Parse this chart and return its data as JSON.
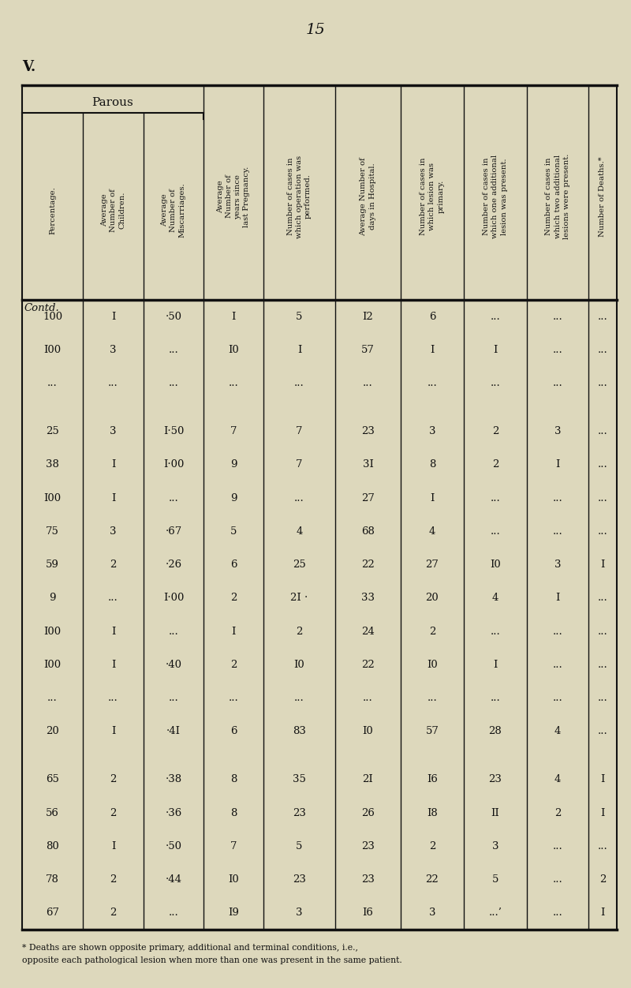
{
  "page_number": "15",
  "section": "V.",
  "parous_label": "Parous",
  "col_headers": [
    "Percentage.",
    "Average\nNumber of\nChildren.",
    "Average\nNumber of\nMiscarriages.",
    "Average\nNumber of\nyears since\nlast Pregnancy.",
    "Number of cases in\nwhich operation was\nperformed.",
    "Average Number of\ndays in Hospital.",
    "Number of cases in\nwhich lesion was\nprimary.",
    "Number of cases in\nwhich one additional\nlesion was present.",
    "Number of cases in\nwhich two additional\nlesions were present.",
    "Number of Deaths.*"
  ],
  "contd_label": "Contd.",
  "rows": [
    [
      "100",
      "I",
      "·50",
      "I",
      "5",
      "I2",
      "6",
      "...",
      "...",
      "..."
    ],
    [
      "I00",
      "3",
      "...",
      "I0",
      "I",
      "57",
      "I",
      "I",
      "...",
      "..."
    ],
    [
      "...",
      "...",
      "...",
      "...",
      "...",
      "...",
      "...",
      "...",
      "...",
      "..."
    ],
    [
      "",
      "",
      "",
      "",
      "",
      "",
      "",
      "",
      "",
      ""
    ],
    [
      "25",
      "3",
      "I·50",
      "7",
      "7",
      "23",
      "3",
      "2",
      "3",
      "..."
    ],
    [
      "38",
      "I",
      "I·00",
      "9",
      "7",
      "3I",
      "8",
      "2",
      "I",
      "..."
    ],
    [
      "I00",
      "I",
      "...",
      "9",
      "...",
      "27",
      "I",
      "...",
      "...",
      "..."
    ],
    [
      "75",
      "3",
      "·67",
      "5",
      "4",
      "68",
      "4",
      "...",
      "...",
      "..."
    ],
    [
      "59",
      "2",
      "·26",
      "6",
      "25",
      "22",
      "27",
      "I0",
      "3",
      "I"
    ],
    [
      "9",
      "...",
      "I·00",
      "2",
      "2I ·",
      "33",
      "20",
      "4",
      "I",
      "..."
    ],
    [
      "I00",
      "I",
      "...",
      "I",
      "2",
      "24",
      "2",
      "...",
      "...",
      "..."
    ],
    [
      "I00",
      "I",
      "·40",
      "2",
      "I0",
      "22",
      "I0",
      "I",
      "...",
      "..."
    ],
    [
      "...",
      "...",
      "...",
      "...",
      "...",
      "...",
      "...",
      "...",
      "...",
      "..."
    ],
    [
      "20",
      "I",
      "·4I",
      "6",
      "83",
      "I0",
      "57",
      "28",
      "4",
      "..."
    ],
    [
      "",
      "",
      "",
      "",
      "",
      "",
      "",
      "",
      "",
      ""
    ],
    [
      "65",
      "2",
      "·38",
      "8",
      "35",
      "2I",
      "I6",
      "23",
      "4",
      "I"
    ],
    [
      "56",
      "2",
      "·36",
      "8",
      "23",
      "26",
      "I8",
      "II",
      "2",
      "I"
    ],
    [
      "80",
      "I",
      "·50",
      "7",
      "5",
      "23",
      "2",
      "3",
      "...",
      "..."
    ],
    [
      "78",
      "2",
      "·44",
      "I0",
      "23",
      "23",
      "22",
      "5",
      "...",
      "2"
    ],
    [
      "67",
      "2",
      "...",
      "I9",
      "3",
      "I6",
      "3",
      "...’",
      "...",
      "I"
    ]
  ],
  "footnote_line1": "* Deaths are shown opposite primary, additional and terminal conditions, i.e.,",
  "footnote_line2": "opposite each pathological lesion when more than one was present in the same patient.",
  "bg_color": "#ddd8bc",
  "text_color": "#111111",
  "line_color": "#111111"
}
